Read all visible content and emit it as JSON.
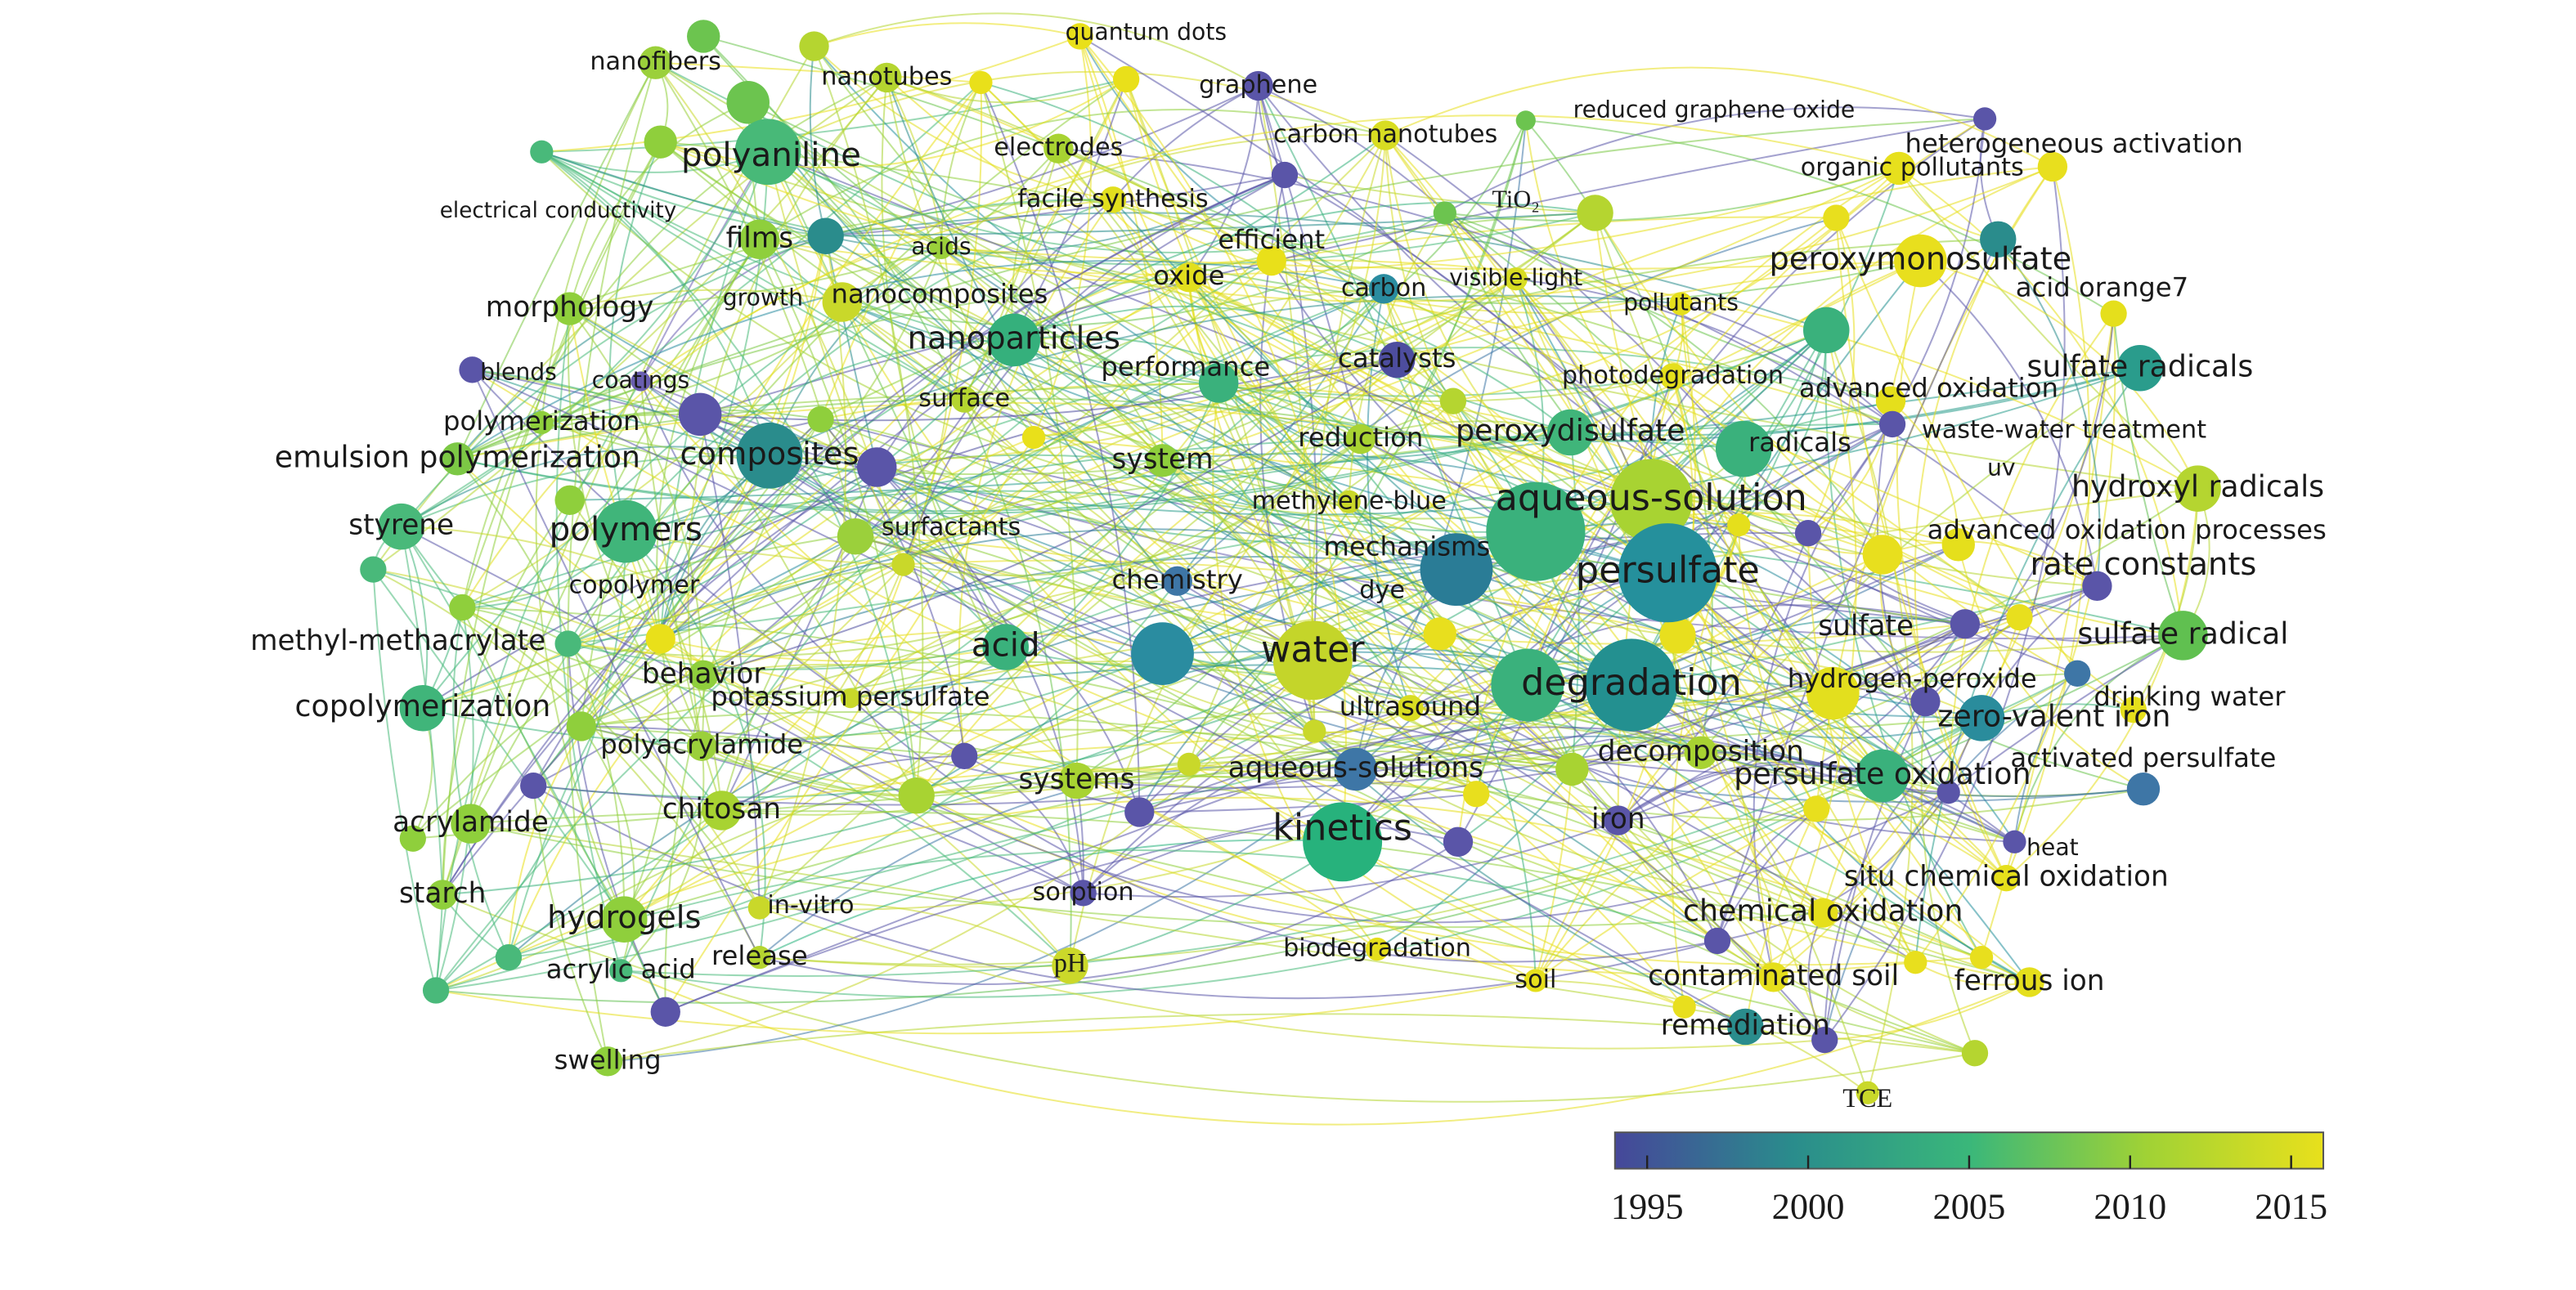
{
  "nodes": [
    {
      "label": "nanofibers",
      "color": "#9bd03b"
    },
    {
      "label": "nanotubes",
      "color": "#b5d530"
    },
    {
      "label": "quantum dots",
      "color": "#e9e01a"
    },
    {
      "label": "graphene",
      "color": "#5a55a8"
    },
    {
      "label": "reduced graphene oxide",
      "color": "#6cc44f"
    },
    {
      "label": "heterogeneous activation",
      "color": "#5a55a8"
    },
    {
      "label": "polyaniline",
      "color": "#48b978"
    },
    {
      "label": "electrodes",
      "color": "#a8d332"
    },
    {
      "label": "carbon nanotubes",
      "color": "#d8dd22"
    },
    {
      "label": "organic pollutants",
      "color": "#e7e01d"
    },
    {
      "label": "electrical conductivity"
    },
    {
      "label": "facile synthesis",
      "color": "#e2df1e"
    },
    {
      "label": "TiO₂",
      "color": "#b5d530"
    },
    {
      "label": "films",
      "color": "#8fcf3c"
    },
    {
      "label": "acids",
      "color": "#9bd03b"
    },
    {
      "label": "efficient",
      "color": "#e9e01a"
    },
    {
      "label": "peroxymonosulfate",
      "color": "#e8df1e"
    },
    {
      "label": "oxide",
      "color": "#e2df1e"
    },
    {
      "label": "carbon",
      "color": "#2a8ca0"
    },
    {
      "label": "visible-light",
      "color": "#d8dd22"
    },
    {
      "label": "morphology",
      "color": "#8fcf3c"
    },
    {
      "label": "growth"
    },
    {
      "label": "nanocomposites",
      "color": "#c9d82a"
    },
    {
      "label": "pollutants",
      "color": "#e5df1c"
    },
    {
      "label": "acid orange7",
      "color": "#e5df1c"
    },
    {
      "label": "nanoparticles",
      "color": "#35b07c"
    },
    {
      "label": "blends",
      "color": "#5a55a8"
    },
    {
      "label": "coatings",
      "color": "#6a5fb0"
    },
    {
      "label": "catalysts",
      "color": "#4d4d9e"
    },
    {
      "label": "performance",
      "color": "#3ab17c"
    },
    {
      "label": "photodegradation",
      "color": "#e5df1c"
    },
    {
      "label": "sulfate radicals",
      "color": "#2a9c8c"
    },
    {
      "label": "advanced oxidation",
      "color": "#e5df1c"
    },
    {
      "label": "polymerization",
      "color": "#8fcf3c"
    },
    {
      "label": "surface",
      "color": "#b5d530"
    },
    {
      "label": "reduction",
      "color": "#a8d332"
    },
    {
      "label": "peroxydisulfate",
      "color": "#40b57a"
    },
    {
      "label": "radicals",
      "color": "#3ab17c"
    },
    {
      "label": "waste-water treatment",
      "color": "#5a55a8"
    },
    {
      "label": "emulsion polymerization",
      "color": "#7cc845"
    },
    {
      "label": "composites",
      "color": "#2a8c8c"
    },
    {
      "label": "system",
      "color": "#8fcf3c"
    },
    {
      "label": "uv"
    },
    {
      "label": "hydroxyl radicals",
      "color": "#b5d530"
    },
    {
      "label": "styrene",
      "color": "#49b97a"
    },
    {
      "label": "polymers",
      "color": "#40b57a"
    },
    {
      "label": "surfactants",
      "color": "#9bd03b"
    },
    {
      "label": "methylene-blue",
      "color": "#c9d82a"
    },
    {
      "label": "aqueous-solution",
      "color": "#a8d332"
    },
    {
      "label": "mechanisms",
      "color": "#2a7c96"
    },
    {
      "label": "advanced oxidation processes",
      "color": "#e5df1c"
    },
    {
      "label": "persulfate",
      "color": "#25909c"
    },
    {
      "label": "chemistry",
      "color": "#3e76a6"
    },
    {
      "label": "copolymer"
    },
    {
      "label": "dye"
    },
    {
      "label": "rate constants",
      "color": "#5a55a8"
    },
    {
      "label": "methyl-methacrylate",
      "color": "#49b97a"
    },
    {
      "label": "acid",
      "color": "#3ab17c"
    },
    {
      "label": "water",
      "color": "#c4d52a"
    },
    {
      "label": "sulfate",
      "color": "#5a55a8"
    },
    {
      "label": "sulfate radical",
      "color": "#60c050"
    },
    {
      "label": "behavior",
      "color": "#8fcf3c"
    },
    {
      "label": "potassium persulfate",
      "color": "#c9d82a"
    },
    {
      "label": "degradation",
      "color": "#239090"
    },
    {
      "label": "hydrogen-peroxide",
      "color": "#e3df1e"
    },
    {
      "label": "drinking water",
      "color": "#e5df1c"
    },
    {
      "label": "copolymerization",
      "color": "#40b57a"
    },
    {
      "label": "ultrasound",
      "color": "#d8dd22"
    },
    {
      "label": "zero-valent iron",
      "color": "#2a8c9c"
    },
    {
      "label": "polyacrylamide",
      "color": "#9bd03b"
    },
    {
      "label": "decomposition",
      "color": "#a8d332"
    },
    {
      "label": "activated persulfate",
      "color": "#3e76a6"
    },
    {
      "label": "systems",
      "color": "#a8d332"
    },
    {
      "label": "aqueous-solutions",
      "color": "#3e76a6"
    },
    {
      "label": "persulfate oxidation",
      "color": "#3ab17c"
    },
    {
      "label": "chitosan",
      "color": "#a8d332"
    },
    {
      "label": "iron",
      "color": "#5a55a8"
    },
    {
      "label": "acrylamide",
      "color": "#8fcf3c"
    },
    {
      "label": "kinetics",
      "color": "#27b27c"
    },
    {
      "label": "heat",
      "color": "#5a55a8"
    },
    {
      "label": "situ chemical oxidation",
      "color": "#e5df1c"
    },
    {
      "label": "sorption",
      "color": "#5a55a8"
    },
    {
      "label": "starch",
      "color": "#8fcf3c"
    },
    {
      "label": "in-vitro",
      "color": "#c9d82a"
    },
    {
      "label": "hydrogels",
      "color": "#8fcf3c"
    },
    {
      "label": "chemical oxidation",
      "color": "#e5df1c"
    },
    {
      "label": "biodegradation",
      "color": "#e5df1c"
    },
    {
      "label": "release",
      "color": "#b5d530"
    },
    {
      "label": "pH",
      "color": "#cbd82a"
    },
    {
      "label": "acrylic acid",
      "color": "#49b97a"
    },
    {
      "label": "soil",
      "color": "#e5df1c"
    },
    {
      "label": "contaminated soil",
      "color": "#e5df1c"
    },
    {
      "label": "ferrous ion",
      "color": "#e5df1c"
    },
    {
      "label": "remediation",
      "color": "#2a8c8c"
    },
    {
      "label": "swelling",
      "color": "#8fcf3c"
    },
    {
      "label": "TCE",
      "color": "#c9d82a"
    }
  ],
  "colorbar": {
    "lim": [
      1994,
      2016
    ],
    "ticks": [
      1995,
      2000,
      2005,
      2010,
      2015
    ],
    "colors": [
      "#46479a",
      "#2a8c8c",
      "#3ab77a",
      "#a0d235",
      "#e8e01c"
    ]
  }
}
